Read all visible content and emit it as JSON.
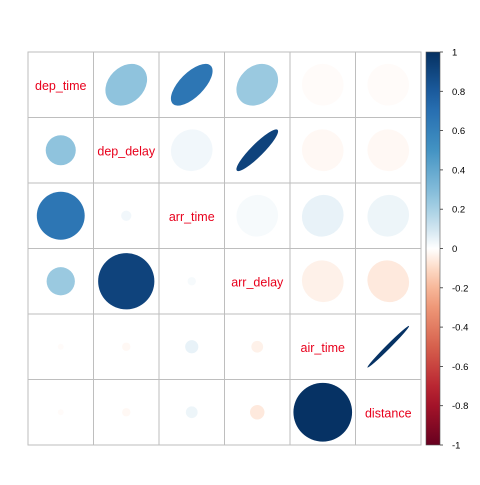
{
  "chart_data": {
    "type": "heatmap",
    "variables": [
      "dep_time",
      "dep_delay",
      "arr_time",
      "arr_delay",
      "air_time",
      "distance"
    ],
    "upper_method": "ellipse",
    "lower_method": "circle",
    "diagonal": "variable names",
    "matrix": [
      [
        1.0,
        0.26,
        0.66,
        0.23,
        -0.01,
        -0.01
      ],
      [
        0.26,
        1.0,
        0.03,
        0.91,
        -0.02,
        -0.02
      ],
      [
        0.66,
        0.03,
        1.0,
        0.02,
        0.05,
        0.04
      ],
      [
        0.23,
        0.91,
        0.02,
        1.0,
        -0.04,
        -0.06
      ],
      [
        -0.01,
        -0.02,
        0.05,
        -0.04,
        1.0,
        0.99
      ],
      [
        -0.01,
        -0.02,
        0.04,
        -0.06,
        0.99,
        1.0
      ]
    ],
    "colorbar": {
      "range": [
        -1,
        1
      ],
      "ticks": [
        "1",
        "0.8",
        "0.6",
        "0.4",
        "0.2",
        "0",
        "-0.2",
        "-0.4",
        "-0.6",
        "-0.8",
        "-1"
      ]
    },
    "colors": {
      "negative_end": "#67001F",
      "neutral": "#FFFFFF",
      "positive_end": "#053061",
      "label_text": "#E8001C",
      "grid": "#BEBEBE"
    }
  }
}
